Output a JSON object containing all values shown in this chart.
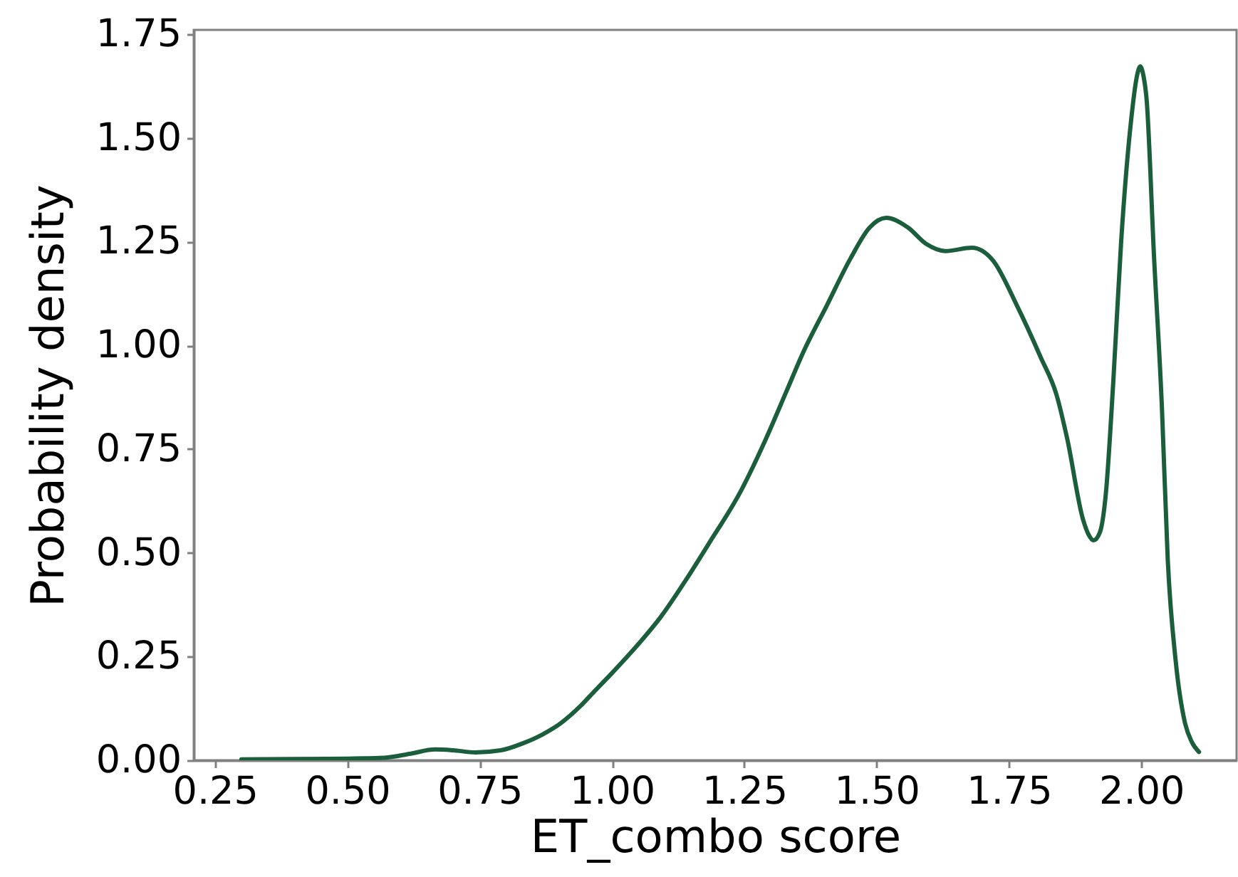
{
  "chart_data": {
    "type": "line",
    "xlabel": "ET_combo score",
    "ylabel": "Probability density",
    "x": [
      0.3,
      0.4,
      0.5,
      0.57,
      0.62,
      0.666,
      0.7,
      0.742,
      0.79,
      0.832,
      0.87,
      0.903,
      0.94,
      0.966,
      1.0,
      1.05,
      1.092,
      1.14,
      1.182,
      1.244,
      1.29,
      1.33,
      1.361,
      1.406,
      1.451,
      1.487,
      1.518,
      1.559,
      1.594,
      1.63,
      1.68,
      1.72,
      1.765,
      1.81,
      1.84,
      1.86,
      1.89,
      1.9,
      1.91,
      1.922,
      1.933,
      1.947,
      1.962,
      1.981,
      1.992,
      1.998,
      2.004,
      2.01,
      2.024,
      2.039,
      2.05,
      2.065,
      2.082,
      2.095,
      2.109
    ],
    "series": [
      {
        "color": "#1b5e3c",
        "values": [
          0.002,
          0.003,
          0.004,
          0.006,
          0.016,
          0.026,
          0.024,
          0.019,
          0.024,
          0.041,
          0.063,
          0.089,
          0.13,
          0.165,
          0.21,
          0.28,
          0.345,
          0.435,
          0.52,
          0.65,
          0.772,
          0.89,
          0.982,
          1.096,
          1.21,
          1.284,
          1.307,
          1.284,
          1.244,
          1.227,
          1.235,
          1.204,
          1.096,
          0.971,
          0.88,
          0.775,
          0.58,
          0.545,
          0.53,
          0.55,
          0.642,
          0.91,
          1.251,
          1.545,
          1.65,
          1.672,
          1.65,
          1.593,
          1.215,
          0.849,
          0.483,
          0.239,
          0.093,
          0.045,
          0.02
        ]
      }
    ],
    "xlim": [
      0.21,
      2.18
    ],
    "ylim": [
      0,
      1.76
    ],
    "xticks": [
      0.25,
      {
        "value": 0.5,
        "label": "0.50"
      },
      0.75,
      {
        "value": 1,
        "label": "1.00"
      },
      1.25,
      {
        "value": 1.5,
        "label": "1.50"
      },
      1.75,
      {
        "value": 2,
        "label": "2.00"
      }
    ],
    "yticks": [
      {
        "value": 0,
        "label": "0.00"
      },
      0.25,
      {
        "value": 0.5,
        "label": "0.50"
      },
      0.75,
      {
        "value": 1,
        "label": "1.00"
      },
      1.25,
      {
        "value": 1.5,
        "label": "1.50"
      },
      1.75
    ]
  }
}
